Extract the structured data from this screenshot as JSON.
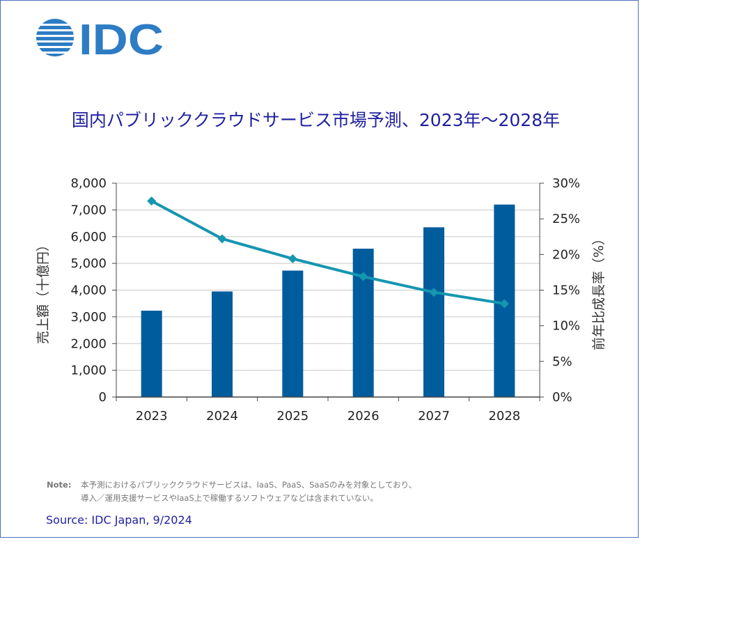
{
  "brand": {
    "name": "IDC",
    "color": "#2d7cc4"
  },
  "title": "国内パブリッククラウドサービス市場予測、2023年～2028年",
  "note": {
    "label": "Note:",
    "line1": "本予測におけるパブリッククラウドサービスは、IaaS、PaaS、SaaSのみを対象としており、",
    "line2": "導入／運用支援サービスやIaaS上で稼働するソフトウェアなどは含まれていない。"
  },
  "source": "Source: IDC Japan, 9/2024",
  "colors": {
    "bar": "#005c9c",
    "line": "#1596b0",
    "grid": "#c8c8c8",
    "title": "#1f1fa0"
  },
  "chart_data": {
    "type": "bar",
    "categories": [
      "2023",
      "2024",
      "2025",
      "2026",
      "2027",
      "2028"
    ],
    "series": [
      {
        "values": [
          3230,
          3950,
          4730,
          5550,
          6350,
          7200
        ],
        "axis": "left",
        "kind": "bar"
      },
      {
        "values": [
          27.5,
          22.2,
          19.4,
          16.9,
          14.7,
          13.1
        ],
        "axis": "right",
        "kind": "line",
        "marker": "diamond"
      }
    ],
    "ylabel": "売上額（十億円）",
    "y2label": "前年比成長率（%）",
    "ylim": [
      0,
      8000
    ],
    "y2lim": [
      0,
      30
    ],
    "yticks": [
      "0",
      "1,000",
      "2,000",
      "3,000",
      "4,000",
      "5,000",
      "6,000",
      "7,000",
      "8,000"
    ],
    "y2ticks": [
      "0%",
      "5%",
      "10%",
      "15%",
      "20%",
      "25%",
      "30%"
    ],
    "grid": true,
    "legend": "none"
  }
}
